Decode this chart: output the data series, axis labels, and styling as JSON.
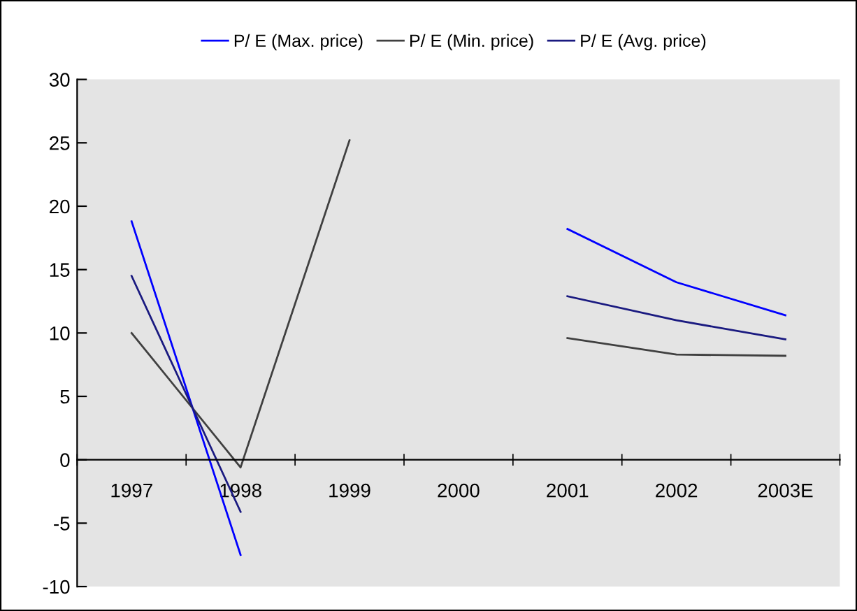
{
  "chart_data": {
    "type": "line",
    "categories": [
      "1997",
      "1998",
      "1999",
      "2000",
      "2001",
      "2002",
      "2003E"
    ],
    "series": [
      {
        "name": "P/ E (Max. price)",
        "color": "#0000ff",
        "values": [
          18.8,
          -7.5,
          null,
          null,
          18.2,
          14.0,
          11.4
        ]
      },
      {
        "name": "P/ E (Min. price)",
        "color": "#404040",
        "values": [
          10.0,
          -0.6,
          25.2,
          null,
          9.6,
          8.3,
          8.2
        ]
      },
      {
        "name": "P/ E (Avg. price)",
        "color": "#1a1a80",
        "values": [
          14.5,
          -4.1,
          null,
          null,
          12.9,
          11.0,
          9.5
        ]
      }
    ],
    "ylim": [
      -10,
      30
    ],
    "yticks": [
      -10,
      -5,
      0,
      5,
      10,
      15,
      20,
      25,
      30
    ],
    "grid": false,
    "legend": "top",
    "marker": "none",
    "line_style": "solid"
  }
}
